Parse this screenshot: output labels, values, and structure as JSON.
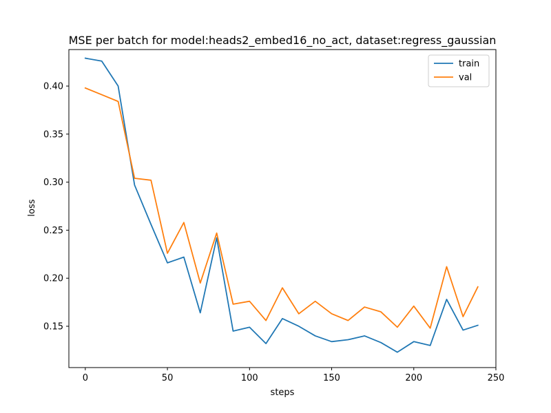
{
  "chart_data": {
    "type": "line",
    "title": "MSE per batch for model:heads2_embed16_no_act, dataset:regress_gaussian",
    "xlabel": "steps",
    "ylabel": "loss",
    "xlim": [
      -10,
      250
    ],
    "ylim": [
      0.107,
      0.438
    ],
    "x_ticks": [
      0,
      50,
      100,
      150,
      200,
      250
    ],
    "x_tick_labels": [
      "0",
      "50",
      "100",
      "150",
      "200",
      "250"
    ],
    "y_ticks": [
      0.15,
      0.2,
      0.25,
      0.3,
      0.35,
      0.4
    ],
    "y_tick_labels": [
      "0.15",
      "0.20",
      "0.25",
      "0.30",
      "0.35",
      "0.40"
    ],
    "grid": false,
    "legend_position": "top-right",
    "x": [
      0,
      10,
      20,
      30,
      40,
      50,
      60,
      70,
      80,
      90,
      100,
      110,
      120,
      130,
      140,
      150,
      160,
      170,
      180,
      190,
      200,
      210,
      220,
      230,
      239
    ],
    "series": [
      {
        "name": "train",
        "color": "#1f77b4",
        "values": [
          0.429,
          0.426,
          0.4,
          0.297,
          0.256,
          0.216,
          0.222,
          0.164,
          0.242,
          0.145,
          0.149,
          0.132,
          0.158,
          0.15,
          0.14,
          0.134,
          0.136,
          0.14,
          0.133,
          0.123,
          0.134,
          0.13,
          0.178,
          0.146,
          0.151
        ]
      },
      {
        "name": "val",
        "color": "#ff7f0e",
        "values": [
          0.398,
          0.391,
          0.384,
          0.304,
          0.302,
          0.226,
          0.258,
          0.195,
          0.247,
          0.173,
          0.176,
          0.156,
          0.19,
          0.163,
          0.176,
          0.163,
          0.156,
          0.17,
          0.165,
          0.149,
          0.171,
          0.148,
          0.212,
          0.16,
          0.191
        ]
      }
    ]
  }
}
